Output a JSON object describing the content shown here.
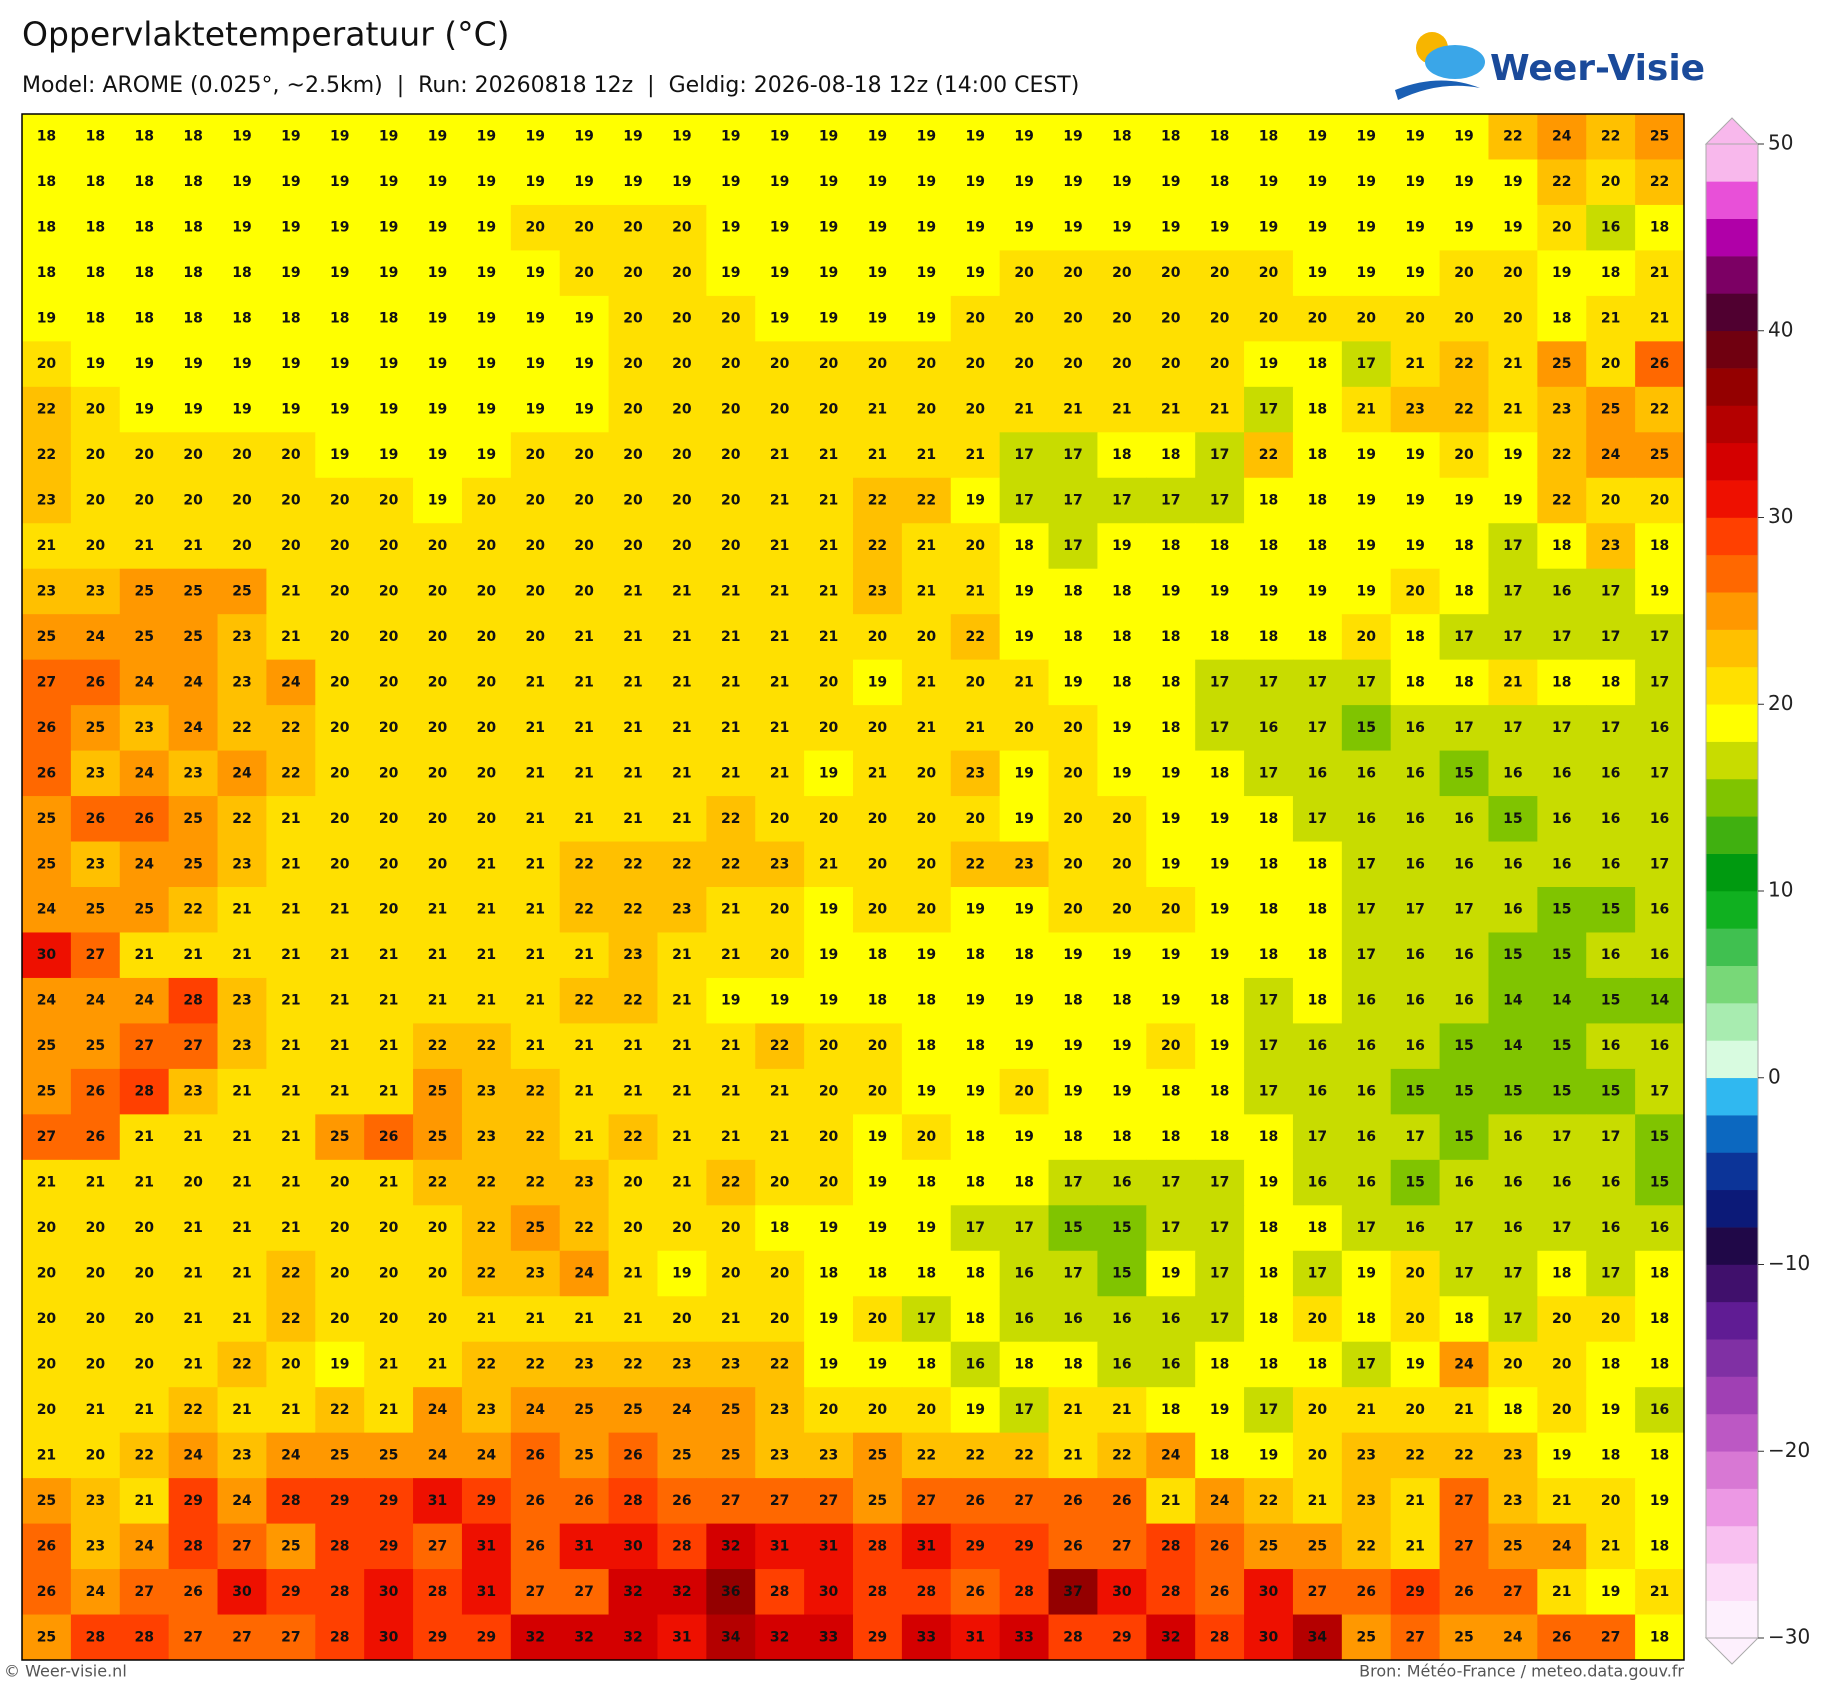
{
  "header": {
    "title": "Oppervlaktetemperatuur (°C)",
    "subtitle": "Model: AROME (0.025°, ~2.5km)  |  Run: 20260818 12z  |  Geldig: 2026-08-18 12z (14:00 CEST)",
    "logo": "Weer-Visie"
  },
  "map": {
    "type": "grid",
    "values": [
      [
        18,
        18,
        18,
        18,
        19,
        19,
        19,
        19,
        19,
        19,
        19,
        19,
        19,
        19,
        19,
        19,
        19,
        19,
        19,
        19,
        19,
        19,
        18,
        18,
        18,
        18,
        19,
        19,
        19,
        19,
        22,
        24,
        22,
        25
      ],
      [
        18,
        18,
        18,
        18,
        19,
        19,
        19,
        19,
        19,
        19,
        19,
        19,
        19,
        19,
        19,
        19,
        19,
        19,
        19,
        19,
        19,
        19,
        19,
        19,
        18,
        19,
        19,
        19,
        19,
        19,
        19,
        22,
        20,
        22
      ],
      [
        18,
        18,
        18,
        18,
        19,
        19,
        19,
        19,
        19,
        19,
        20,
        20,
        20,
        20,
        19,
        19,
        19,
        19,
        19,
        19,
        19,
        19,
        19,
        19,
        19,
        19,
        19,
        19,
        19,
        19,
        19,
        20,
        16,
        18
      ],
      [
        18,
        18,
        18,
        18,
        18,
        19,
        19,
        19,
        19,
        19,
        19,
        20,
        20,
        20,
        19,
        19,
        19,
        19,
        19,
        19,
        20,
        20,
        20,
        20,
        20,
        20,
        19,
        19,
        19,
        20,
        20,
        19,
        18,
        21
      ],
      [
        19,
        18,
        18,
        18,
        18,
        18,
        18,
        18,
        19,
        19,
        19,
        19,
        20,
        20,
        20,
        19,
        19,
        19,
        19,
        20,
        20,
        20,
        20,
        20,
        20,
        20,
        20,
        20,
        20,
        20,
        20,
        18,
        21,
        21
      ],
      [
        20,
        19,
        19,
        19,
        19,
        19,
        19,
        19,
        19,
        19,
        19,
        19,
        20,
        20,
        20,
        20,
        20,
        20,
        20,
        20,
        20,
        20,
        20,
        20,
        20,
        19,
        18,
        17,
        21,
        22,
        21,
        25,
        20,
        26
      ],
      [
        22,
        20,
        19,
        19,
        19,
        19,
        19,
        19,
        19,
        19,
        19,
        19,
        20,
        20,
        20,
        20,
        20,
        21,
        20,
        20,
        21,
        21,
        21,
        21,
        21,
        17,
        18,
        21,
        23,
        22,
        21,
        23,
        25,
        22
      ],
      [
        22,
        20,
        20,
        20,
        20,
        20,
        19,
        19,
        19,
        19,
        20,
        20,
        20,
        20,
        20,
        21,
        21,
        21,
        21,
        21,
        17,
        17,
        18,
        18,
        17,
        22,
        18,
        19,
        19,
        20,
        19,
        22,
        24,
        25
      ],
      [
        23,
        20,
        20,
        20,
        20,
        20,
        20,
        20,
        19,
        20,
        20,
        20,
        20,
        20,
        20,
        21,
        21,
        22,
        22,
        19,
        17,
        17,
        17,
        17,
        17,
        18,
        18,
        19,
        19,
        19,
        19,
        22,
        20,
        20
      ],
      [
        21,
        20,
        21,
        21,
        20,
        20,
        20,
        20,
        20,
        20,
        20,
        20,
        20,
        20,
        20,
        21,
        21,
        22,
        21,
        20,
        18,
        17,
        19,
        18,
        18,
        18,
        18,
        19,
        19,
        18,
        17,
        18,
        23,
        18
      ],
      [
        23,
        23,
        25,
        25,
        25,
        21,
        20,
        20,
        20,
        20,
        20,
        20,
        21,
        21,
        21,
        21,
        21,
        23,
        21,
        21,
        19,
        18,
        18,
        19,
        19,
        19,
        19,
        19,
        20,
        18,
        17,
        16,
        17,
        19
      ],
      [
        25,
        24,
        25,
        25,
        23,
        21,
        20,
        20,
        20,
        20,
        20,
        21,
        21,
        21,
        21,
        21,
        21,
        20,
        20,
        22,
        19,
        18,
        18,
        18,
        18,
        18,
        18,
        20,
        18,
        17,
        17,
        17,
        17,
        17
      ],
      [
        27,
        26,
        24,
        24,
        23,
        24,
        20,
        20,
        20,
        20,
        21,
        21,
        21,
        21,
        21,
        21,
        20,
        19,
        21,
        20,
        21,
        19,
        18,
        18,
        17,
        17,
        17,
        17,
        18,
        18,
        21,
        18,
        18,
        17
      ],
      [
        26,
        25,
        23,
        24,
        22,
        22,
        20,
        20,
        20,
        20,
        21,
        21,
        21,
        21,
        21,
        21,
        20,
        20,
        21,
        21,
        20,
        20,
        19,
        18,
        17,
        16,
        17,
        15,
        16,
        17,
        17,
        17,
        17,
        16
      ],
      [
        26,
        23,
        24,
        23,
        24,
        22,
        20,
        20,
        20,
        20,
        21,
        21,
        21,
        21,
        21,
        21,
        19,
        21,
        20,
        23,
        19,
        20,
        19,
        19,
        18,
        17,
        16,
        16,
        16,
        15,
        16,
        16,
        16,
        17
      ],
      [
        25,
        26,
        26,
        25,
        22,
        21,
        20,
        20,
        20,
        20,
        21,
        21,
        21,
        21,
        22,
        20,
        20,
        20,
        20,
        20,
        19,
        20,
        20,
        19,
        19,
        18,
        17,
        16,
        16,
        16,
        15,
        16,
        16,
        16
      ],
      [
        25,
        23,
        24,
        25,
        23,
        21,
        20,
        20,
        20,
        21,
        21,
        22,
        22,
        22,
        22,
        23,
        21,
        20,
        20,
        22,
        23,
        20,
        20,
        19,
        19,
        18,
        18,
        17,
        16,
        16,
        16,
        16,
        16,
        17
      ],
      [
        24,
        25,
        25,
        22,
        21,
        21,
        21,
        20,
        21,
        21,
        21,
        22,
        22,
        23,
        21,
        20,
        19,
        20,
        20,
        19,
        19,
        20,
        20,
        20,
        19,
        18,
        18,
        17,
        17,
        17,
        16,
        15,
        15,
        16
      ],
      [
        30,
        27,
        21,
        21,
        21,
        21,
        21,
        21,
        21,
        21,
        21,
        21,
        23,
        21,
        21,
        20,
        19,
        18,
        19,
        18,
        18,
        19,
        19,
        19,
        19,
        18,
        18,
        17,
        16,
        16,
        15,
        15,
        16,
        16
      ],
      [
        24,
        24,
        24,
        28,
        23,
        21,
        21,
        21,
        21,
        21,
        21,
        22,
        22,
        21,
        19,
        19,
        19,
        18,
        18,
        19,
        19,
        18,
        18,
        19,
        18,
        17,
        18,
        16,
        16,
        16,
        14,
        14,
        15,
        14
      ],
      [
        25,
        25,
        27,
        27,
        23,
        21,
        21,
        21,
        22,
        22,
        21,
        21,
        21,
        21,
        21,
        22,
        20,
        20,
        18,
        18,
        19,
        19,
        19,
        20,
        19,
        17,
        16,
        16,
        16,
        15,
        14,
        15,
        16,
        16
      ],
      [
        25,
        26,
        28,
        23,
        21,
        21,
        21,
        21,
        25,
        23,
        22,
        21,
        21,
        21,
        21,
        21,
        20,
        20,
        19,
        19,
        20,
        19,
        19,
        18,
        18,
        17,
        16,
        16,
        15,
        15,
        15,
        15,
        15,
        17
      ],
      [
        27,
        26,
        21,
        21,
        21,
        21,
        25,
        26,
        25,
        23,
        22,
        21,
        22,
        21,
        21,
        21,
        20,
        19,
        20,
        18,
        19,
        18,
        18,
        18,
        18,
        18,
        17,
        16,
        17,
        15,
        16,
        17,
        17,
        15
      ],
      [
        21,
        21,
        21,
        20,
        21,
        21,
        20,
        21,
        22,
        22,
        22,
        23,
        20,
        21,
        22,
        20,
        20,
        19,
        18,
        18,
        18,
        17,
        16,
        17,
        17,
        19,
        16,
        16,
        15,
        16,
        16,
        16,
        16,
        15
      ],
      [
        20,
        20,
        20,
        21,
        21,
        21,
        20,
        20,
        20,
        22,
        25,
        22,
        20,
        20,
        20,
        18,
        19,
        19,
        19,
        17,
        17,
        15,
        15,
        17,
        17,
        18,
        18,
        17,
        16,
        17,
        16,
        17,
        16,
        16
      ],
      [
        20,
        20,
        20,
        21,
        21,
        22,
        20,
        20,
        20,
        22,
        23,
        24,
        21,
        19,
        20,
        20,
        18,
        18,
        18,
        18,
        16,
        17,
        15,
        19,
        17,
        18,
        17,
        19,
        20,
        17,
        17,
        18,
        17,
        18
      ],
      [
        20,
        20,
        20,
        21,
        21,
        22,
        20,
        20,
        20,
        21,
        21,
        21,
        21,
        20,
        21,
        20,
        19,
        20,
        17,
        18,
        16,
        16,
        16,
        16,
        17,
        18,
        20,
        18,
        20,
        18,
        17,
        20,
        20,
        18
      ],
      [
        20,
        20,
        20,
        21,
        22,
        20,
        19,
        21,
        21,
        22,
        22,
        23,
        22,
        23,
        23,
        22,
        19,
        19,
        18,
        16,
        18,
        18,
        16,
        16,
        18,
        18,
        18,
        17,
        19,
        24,
        20,
        20,
        18,
        18
      ],
      [
        20,
        21,
        21,
        22,
        21,
        21,
        22,
        21,
        24,
        23,
        24,
        25,
        25,
        24,
        25,
        23,
        20,
        20,
        20,
        19,
        17,
        21,
        21,
        18,
        19,
        17,
        20,
        21,
        20,
        21,
        18,
        20,
        19,
        16
      ],
      [
        21,
        20,
        22,
        24,
        23,
        24,
        25,
        25,
        24,
        24,
        26,
        25,
        26,
        25,
        25,
        23,
        23,
        25,
        22,
        22,
        22,
        21,
        22,
        24,
        18,
        19,
        20,
        23,
        22,
        22,
        23,
        19,
        18,
        18
      ],
      [
        25,
        23,
        21,
        29,
        24,
        28,
        29,
        29,
        31,
        29,
        26,
        26,
        28,
        26,
        27,
        27,
        27,
        25,
        27,
        26,
        27,
        26,
        26,
        21,
        24,
        22,
        21,
        23,
        21,
        27,
        23,
        21,
        20,
        19
      ],
      [
        26,
        23,
        24,
        28,
        27,
        25,
        28,
        29,
        27,
        31,
        26,
        31,
        30,
        28,
        32,
        31,
        31,
        28,
        31,
        29,
        29,
        26,
        27,
        28,
        26,
        25,
        25,
        22,
        21,
        27,
        25,
        24,
        21,
        18
      ],
      [
        26,
        24,
        27,
        26,
        30,
        29,
        28,
        30,
        28,
        31,
        27,
        27,
        32,
        32,
        36,
        28,
        30,
        28,
        28,
        26,
        28,
        37,
        30,
        28,
        26,
        30,
        27,
        26,
        29,
        26,
        27,
        21,
        19,
        21
      ],
      [
        25,
        28,
        28,
        27,
        27,
        27,
        28,
        30,
        29,
        29,
        32,
        32,
        32,
        31,
        34,
        32,
        33,
        29,
        33,
        31,
        33,
        28,
        29,
        32,
        28,
        30,
        34,
        25,
        27,
        25,
        24,
        26,
        27,
        18
      ]
    ]
  },
  "colorbar": {
    "lim": [
      -30,
      50
    ],
    "ticks": [
      50,
      40,
      30,
      20,
      10,
      0,
      {
        "value": -10,
        "label": "−10"
      },
      {
        "value": -20,
        "label": "−20"
      },
      {
        "value": -30,
        "label": "−30"
      }
    ],
    "colors": [
      "#fdf0fd",
      "#fcdcf8",
      "#f8c0f0",
      "#ec98e4",
      "#d878d4",
      "#bc58c4",
      "#a040b4",
      "#8030a4",
      "#601c94",
      "#40106c",
      "#200848",
      "#0c1a78",
      "#0c3498",
      "#0c68c0",
      "#30b8f0",
      "#d8fbe0",
      "#a8ecb0",
      "#78d878",
      "#40c050",
      "#10b020",
      "#009a10",
      "#40b010",
      "#80c400",
      "#c8dc00",
      "#ffff00",
      "#ffe000",
      "#ffc000",
      "#ff9800",
      "#ff6800",
      "#ff4000",
      "#ee1000",
      "#d40000",
      "#b40000",
      "#940000",
      "#700010",
      "#500030",
      "#7c0064",
      "#b000a8",
      "#e850d8",
      "#f8b8ec"
    ]
  },
  "footer": {
    "credit": "© Weer-visie.nl",
    "source": "Bron: Météo-France / meteo.data.gouv.fr"
  }
}
